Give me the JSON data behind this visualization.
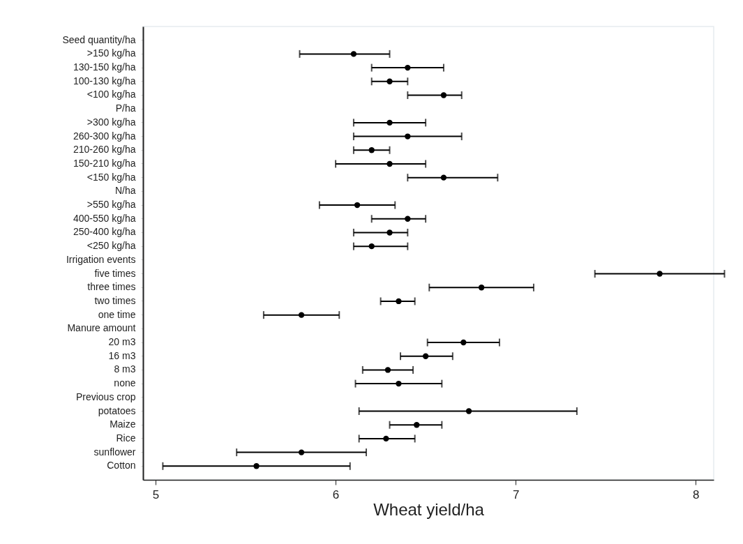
{
  "chart_data": {
    "type": "scatter",
    "orientation": "horizontal",
    "xlabel": "Wheat yield/ha",
    "color": "#000000",
    "marker": "circle",
    "categories": [
      "Seed quantity/ha",
      ">150 kg/ha",
      "130-150 kg/ha",
      "100-130 kg/ha",
      "<100 kg/ha",
      "P/ha",
      ">300 kg/ha",
      "260-300 kg/ha",
      "210-260 kg/ha",
      "150-210 kg/ha",
      "<150 kg/ha",
      "N/ha",
      ">550 kg/ha",
      "400-550 kg/ha",
      "250-400 kg/ha",
      "<250 kg/ha",
      "Irrigation events",
      "five times",
      "three times",
      "two times",
      "one time",
      "Manure amount",
      "20 m3",
      "16 m3",
      "8 m3",
      "none",
      "Previous crop",
      "potatoes",
      "Maize",
      "Rice",
      "sunflower",
      "Cotton"
    ],
    "values": [
      null,
      6.1,
      6.4,
      6.3,
      6.6,
      null,
      6.3,
      6.4,
      6.2,
      6.3,
      6.6,
      null,
      6.12,
      6.4,
      6.3,
      6.2,
      null,
      7.8,
      6.81,
      6.35,
      5.81,
      null,
      6.71,
      6.5,
      6.29,
      6.35,
      null,
      6.74,
      6.45,
      6.28,
      5.81,
      5.56
    ],
    "errors": [
      null,
      [
        5.8,
        6.3
      ],
      [
        6.2,
        6.6
      ],
      [
        6.2,
        6.4
      ],
      [
        6.4,
        6.7
      ],
      null,
      [
        6.1,
        6.5
      ],
      [
        6.1,
        6.7
      ],
      [
        6.1,
        6.3
      ],
      [
        6.0,
        6.5
      ],
      [
        6.4,
        6.9
      ],
      null,
      [
        5.91,
        6.33
      ],
      [
        6.2,
        6.5
      ],
      [
        6.1,
        6.4
      ],
      [
        6.1,
        6.4
      ],
      null,
      [
        7.44,
        8.16
      ],
      [
        6.52,
        7.1
      ],
      [
        6.25,
        6.44
      ],
      [
        5.6,
        6.02
      ],
      null,
      [
        6.51,
        6.91
      ],
      [
        6.36,
        6.65
      ],
      [
        6.15,
        6.43
      ],
      [
        6.11,
        6.59
      ],
      null,
      [
        6.13,
        7.34
      ],
      [
        6.3,
        6.59
      ],
      [
        6.13,
        6.44
      ],
      [
        5.45,
        6.17
      ],
      [
        5.04,
        6.08
      ]
    ],
    "xlim": [
      4.93,
      8.1
    ],
    "xticks": [
      5,
      6,
      7,
      8
    ]
  }
}
